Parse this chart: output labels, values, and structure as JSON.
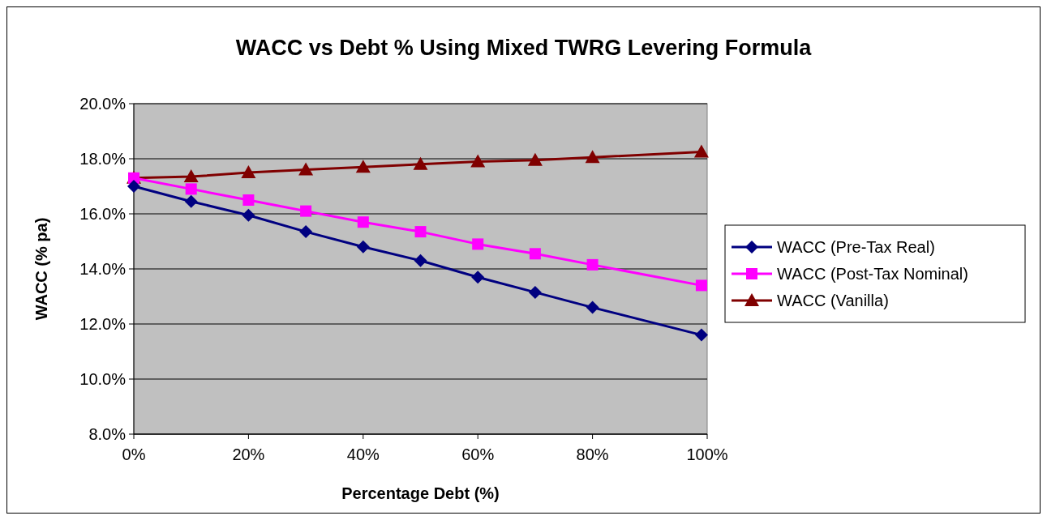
{
  "chart_data": {
    "type": "line",
    "title": "WACC vs Debt % Using Mixed TWRG Levering Formula",
    "xlabel": "Percentage Debt (%)",
    "ylabel": "WACC (% pa)",
    "x": [
      0,
      10,
      20,
      30,
      40,
      50,
      60,
      70,
      80,
      99
    ],
    "series": [
      {
        "name": "WACC (Pre-Tax Real)",
        "color": "#000080",
        "marker": "diamond",
        "values": [
          17.0,
          16.45,
          15.95,
          15.35,
          14.8,
          14.3,
          13.7,
          13.15,
          12.6,
          11.6
        ]
      },
      {
        "name": "WACC (Post-Tax Nominal)",
        "color": "#ff00ff",
        "marker": "square",
        "values": [
          17.3,
          16.9,
          16.5,
          16.1,
          15.7,
          15.35,
          14.9,
          14.55,
          14.15,
          13.4
        ]
      },
      {
        "name": "WACC (Vanilla)",
        "color": "#800000",
        "marker": "triangle",
        "values": [
          17.3,
          17.35,
          17.5,
          17.6,
          17.7,
          17.8,
          17.9,
          17.95,
          18.05,
          18.25
        ]
      }
    ],
    "xlim": [
      0,
      100
    ],
    "xticks": [
      {
        "value": 0,
        "label": "0%"
      },
      {
        "value": 20,
        "label": "20%"
      },
      {
        "value": 40,
        "label": "40%"
      },
      {
        "value": 60,
        "label": "60%"
      },
      {
        "value": 80,
        "label": "80%"
      },
      {
        "value": 100,
        "label": "100%"
      }
    ],
    "ylim": [
      8,
      20
    ],
    "yticks": [
      {
        "value": 8,
        "label": "8.0%"
      },
      {
        "value": 10,
        "label": "10.0%"
      },
      {
        "value": 12,
        "label": "12.0%"
      },
      {
        "value": 14,
        "label": "14.0%"
      },
      {
        "value": 16,
        "label": "16.0%"
      },
      {
        "value": 18,
        "label": "18.0%"
      },
      {
        "value": 20,
        "label": "20.0%"
      }
    ],
    "grid": "y",
    "legend": "right"
  }
}
